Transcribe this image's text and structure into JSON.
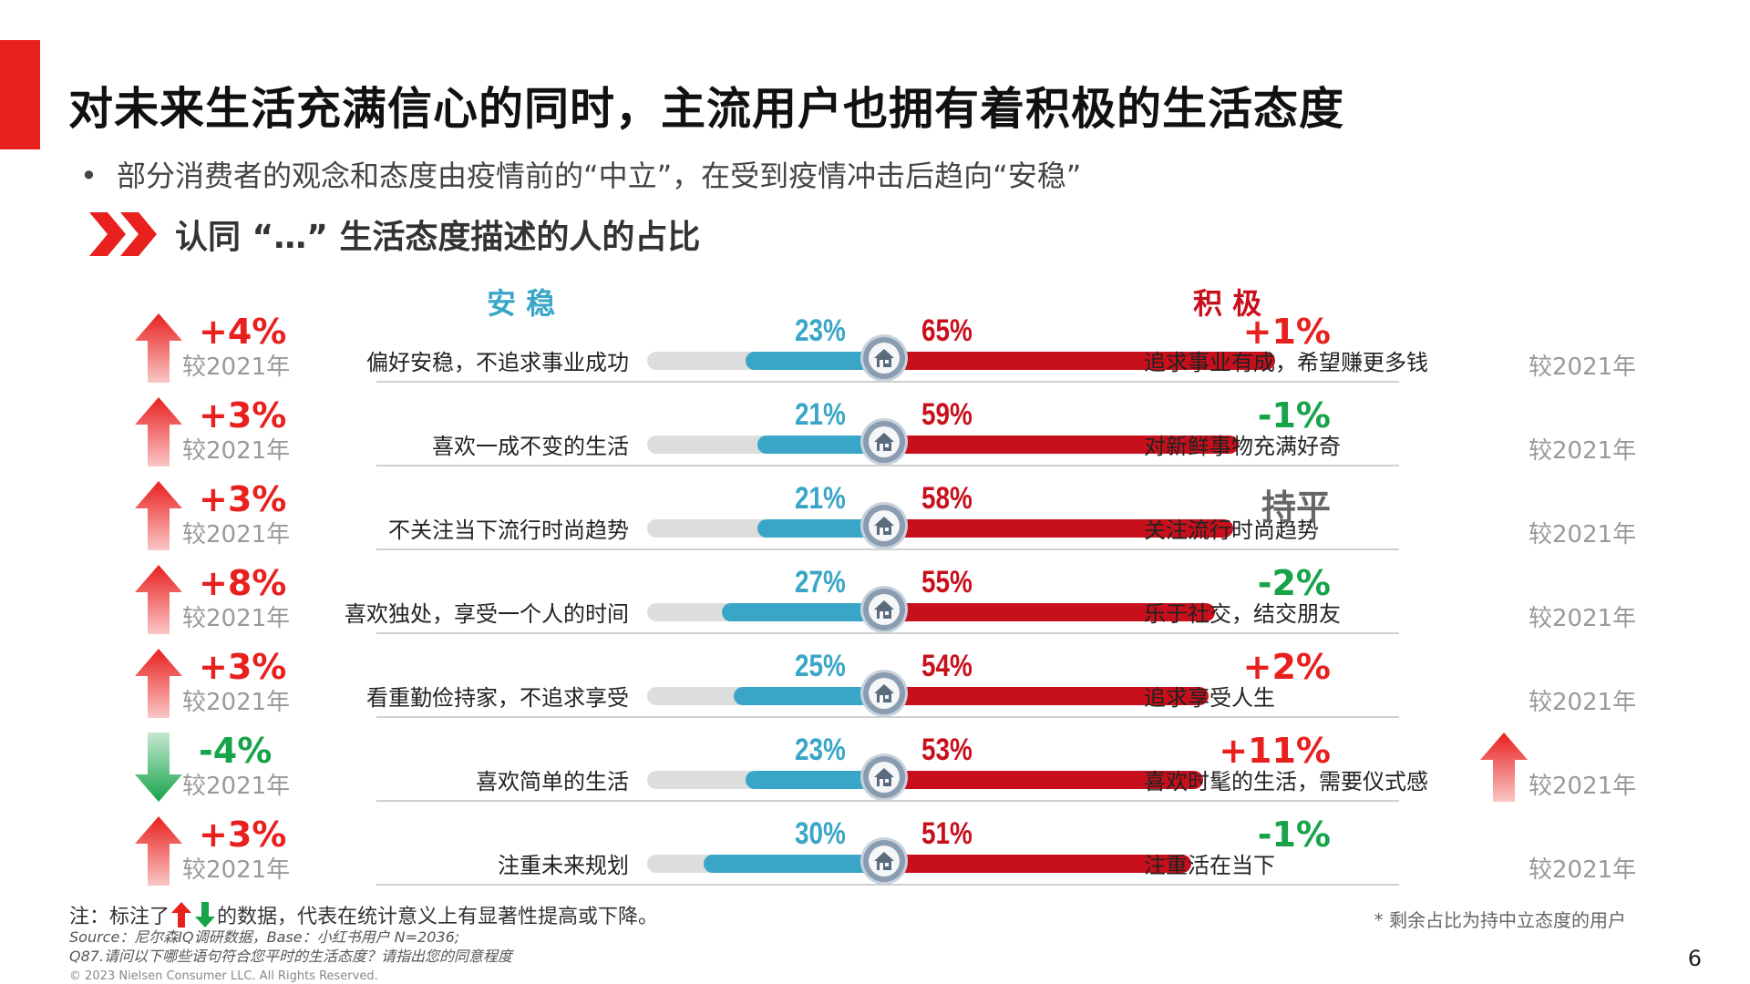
{
  "title": "对未来生活充满信心的同时，主流用户也拥有着积极的生活态度",
  "bullet": "部分消费者的观念和态度由疫情前的“中立”，在受到疫情冲击后趋向“安稳”",
  "subhead": "认同 “…” 生活态度描述的人的占比",
  "colors": {
    "accent": "#e8201e",
    "stable_blue": "#3aa6c7",
    "active_red": "#c8101c",
    "up_red": "#e8201e",
    "down_green": "#16a34a"
  },
  "chart_data": {
    "type": "bar",
    "left_header": "安  稳",
    "right_header": "积  极",
    "rows": [
      {
        "left_label": "偏好安稳，不追求事业成功",
        "left_value": 23,
        "left_pct": "23%",
        "right_label": "追求事业有成，希望赚更多钱",
        "right_value": 65,
        "right_pct": "65%",
        "left_change": "+4%",
        "left_dir": "up",
        "right_change": "+1%",
        "right_dir": "none",
        "right_color": "red"
      },
      {
        "left_label": "喜欢一成不变的生活",
        "left_value": 21,
        "left_pct": "21%",
        "right_label": "对新鲜事物充满好奇",
        "right_value": 59,
        "right_pct": "59%",
        "left_change": "+3%",
        "left_dir": "up",
        "right_change": "-1%",
        "right_dir": "none",
        "right_color": "green"
      },
      {
        "left_label": "不关注当下流行时尚趋势",
        "left_value": 21,
        "left_pct": "21%",
        "right_label": "关注流行时尚趋势",
        "right_value": 58,
        "right_pct": "58%",
        "left_change": "+3%",
        "left_dir": "up",
        "right_change": "持平",
        "right_dir": "none",
        "right_color": "gray"
      },
      {
        "left_label": "喜欢独处，享受一个人的时间",
        "left_value": 27,
        "left_pct": "27%",
        "right_label": "乐于社交，结交朋友",
        "right_value": 55,
        "right_pct": "55%",
        "left_change": "+8%",
        "left_dir": "up",
        "right_change": "-2%",
        "right_dir": "none",
        "right_color": "green"
      },
      {
        "left_label": "看重勤俭持家，不追求享受",
        "left_value": 25,
        "left_pct": "25%",
        "right_label": "追求享受人生",
        "right_value": 54,
        "right_pct": "54%",
        "left_change": "+3%",
        "left_dir": "up",
        "right_change": "+2%",
        "right_dir": "none",
        "right_color": "red"
      },
      {
        "left_label": "喜欢简单的生活",
        "left_value": 23,
        "left_pct": "23%",
        "right_label": "喜欢时髦的生活，需要仪式感",
        "right_value": 53,
        "right_pct": "53%",
        "left_change": "-4%",
        "left_dir": "down",
        "right_change": "+11%",
        "right_dir": "up",
        "right_color": "red"
      },
      {
        "left_label": "注重未来规划",
        "left_value": 30,
        "left_pct": "30%",
        "right_label": "注重活在当下",
        "right_value": 51,
        "right_pct": "51%",
        "left_change": "+3%",
        "left_dir": "up",
        "right_change": "-1%",
        "right_dir": "none",
        "right_color": "green"
      }
    ],
    "comparison_label": "较2021年"
  },
  "note_prefix": "注：标注了",
  "note_suffix": "的数据，代表在统计意义上有显著性提高或下降。",
  "source_line1": "Source：尼尔森IQ调研数据，Base：小红书用户 N=2036;",
  "source_line2": "Q87.请问以下哪些语句符合您平时的生活态度？请指出您的同意程度",
  "copyright": "© 2023 Nielsen Consumer LLC. All Rights Reserved.",
  "footnote": "* 剩余占比为持中立态度的用户",
  "page_number": "6"
}
